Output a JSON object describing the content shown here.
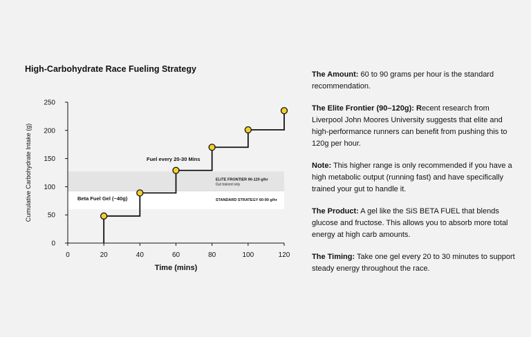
{
  "chart_data": {
    "type": "line",
    "title": "High-Carbohydrate Race Fueling Strategy",
    "xlabel": "Time (mins)",
    "ylabel": "Cumulative Carbohydrate Intake (g)",
    "xlim": [
      0,
      120
    ],
    "ylim": [
      0,
      250
    ],
    "xticks": [
      0,
      20,
      40,
      60,
      80,
      100,
      120
    ],
    "yticks": [
      0,
      50,
      100,
      150,
      200,
      250
    ],
    "step": true,
    "points": [
      {
        "x": 20,
        "y": 48
      },
      {
        "x": 40,
        "y": 89
      },
      {
        "x": 60,
        "y": 129
      },
      {
        "x": 80,
        "y": 170
      },
      {
        "x": 100,
        "y": 201
      },
      {
        "x": 120,
        "y": 235
      }
    ],
    "line_color": "#111111",
    "marker_color": "#f2cf2c",
    "bands": [
      {
        "from": 92,
        "to": 127,
        "label": "ELITE FRONTIER 90-120 g/hr",
        "sublabel": "Gut trained only",
        "color": "#e4e4e4"
      },
      {
        "from": 60,
        "to": 92,
        "label": "STANDARD STRATEGY 60-90 g/hr",
        "sublabel": "",
        "color": "#ffffff"
      }
    ],
    "annotations": [
      {
        "text": "Beta Fuel Gel (~40g)",
        "x": 20
      },
      {
        "text": "Fuel every 20-30 Mins",
        "x": 60
      }
    ],
    "grid": false
  },
  "notes": [
    {
      "heading": "The Amount:",
      "body": " 60 to 90 grams per hour is the standard recommendation."
    },
    {
      "heading": "The Elite Frontier (90–120g): R",
      "body": "ecent research from Liverpool John Moores University suggests that elite and high-performance runners can benefit from pushing this to 120g per hour."
    },
    {
      "heading": "Note:",
      "body": " This higher range is only recommended if you have a high metabolic output (running fast) and have specifically trained your gut to handle it."
    },
    {
      "heading": "The Product:",
      "body": " A gel like the SiS BETA FUEL that blends glucose and fructose. This allows you to absorb more total energy at high carb amounts."
    },
    {
      "heading": "The Timing:",
      "body": " Take one gel every 20 to 30 minutes to support steady energy throughout the race."
    }
  ]
}
